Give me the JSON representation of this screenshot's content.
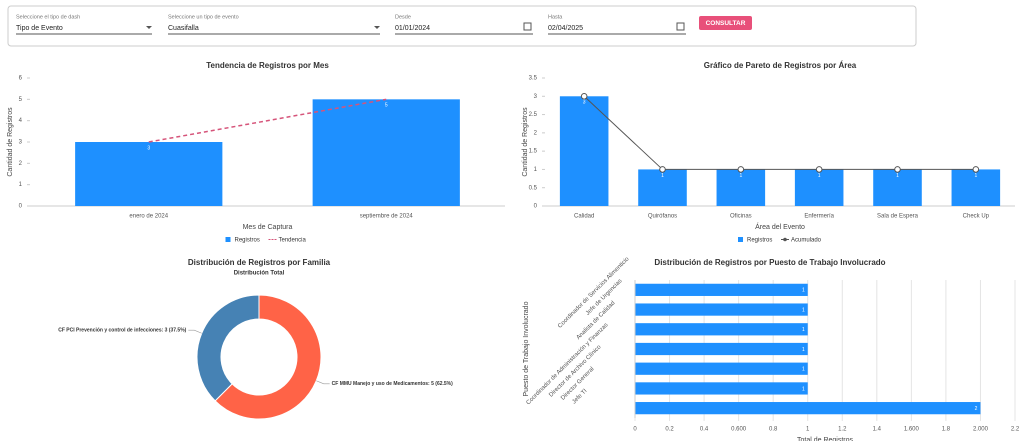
{
  "filters": [
    {
      "label": "Seleccione el tipo de dash",
      "value": "Tipo de Evento"
    },
    {
      "label": "Seleccione un tipo de evento",
      "value": "Cuasifalla"
    },
    {
      "label": "Desde",
      "value": "01/01/2024"
    },
    {
      "label": "Hasta",
      "value": "02/04/2025"
    }
  ],
  "button": "CONSULTAR",
  "chart_data": [
    {
      "type": "bar",
      "title": "Tendencia de Registros por Mes",
      "categories": [
        "enero de 2024",
        "septiembre de 2024"
      ],
      "series": [
        {
          "name": "Registros",
          "type": "bar",
          "color": "#1e90ff",
          "values": [
            3,
            5
          ]
        },
        {
          "name": "Tendencia",
          "type": "line",
          "dashed": true,
          "color": "#d6547a",
          "values": [
            3,
            5
          ]
        }
      ],
      "ylim": [
        0,
        6
      ],
      "yticks": [
        0,
        1,
        2,
        3,
        4,
        5,
        6
      ],
      "xlabel": "Mes de Captura",
      "ylabel": "Cantidad de Registros"
    },
    {
      "type": "bar",
      "title": "Gráfico de Pareto de Registros por Área",
      "categories": [
        "Calidad",
        "Quirófanos",
        "Oficinas",
        "Enfermería",
        "Sala de Espera",
        "Check Up"
      ],
      "series": [
        {
          "name": "Registros",
          "type": "bar",
          "color": "#1e90ff",
          "values": [
            3,
            1,
            1,
            1,
            1,
            1
          ]
        },
        {
          "name": "Acumulado",
          "type": "line",
          "markers": true,
          "color": "#555555",
          "values": [
            3,
            1,
            1,
            1,
            1,
            1
          ]
        }
      ],
      "ylim": [
        0,
        3.5
      ],
      "yticks": [
        0,
        0.5,
        1,
        1.5,
        2,
        2.5,
        3,
        3.5
      ],
      "xlabel": "Área del Evento",
      "ylabel": "Cantidad de Registros"
    },
    {
      "type": "donut",
      "title": "Distribución de Registros por Familia",
      "subtitle": "Distribución Total",
      "categories": [
        "CF MMU Manejo y uso de Medicamentos",
        "CF PCI Prevención y control de infecciones"
      ],
      "values": [
        5,
        3
      ],
      "value_labels": [
        "CF MMU Manejo y uso de Medicamentos: 5 (62.5%)",
        "CF PCI Prevención y control de infecciones: 3 (37.5%)"
      ],
      "colors": [
        "#ff6347",
        "#4682b4"
      ]
    },
    {
      "type": "barh",
      "title": "Distribución de Registros por Puesto de Trabajo Involucrado",
      "categories": [
        "Coordinador de Servicios Alimenticio",
        "Jefe de Urgencias",
        "Analista de Calidad",
        "Coordinador de Administración y Finanzas",
        "Director de Archivo Clínico",
        "Director General",
        "Jefe TI"
      ],
      "values": [
        1,
        1,
        1,
        1,
        1,
        1,
        2
      ],
      "color": "#1e90ff",
      "xlim": [
        0,
        2.2
      ],
      "xticks": [
        0,
        0.2,
        0.4,
        {
          "value": 0.6,
          "label": "0.600"
        },
        0.8,
        1,
        1.2,
        1.4,
        {
          "value": 1.6,
          "label": "1.600"
        },
        1.8,
        {
          "value": 2,
          "label": "2.000"
        },
        2.2
      ],
      "xlabel": "Total de Registros",
      "ylabel": "Puesto de Trabajo Involucrado",
      "grid": true
    }
  ]
}
